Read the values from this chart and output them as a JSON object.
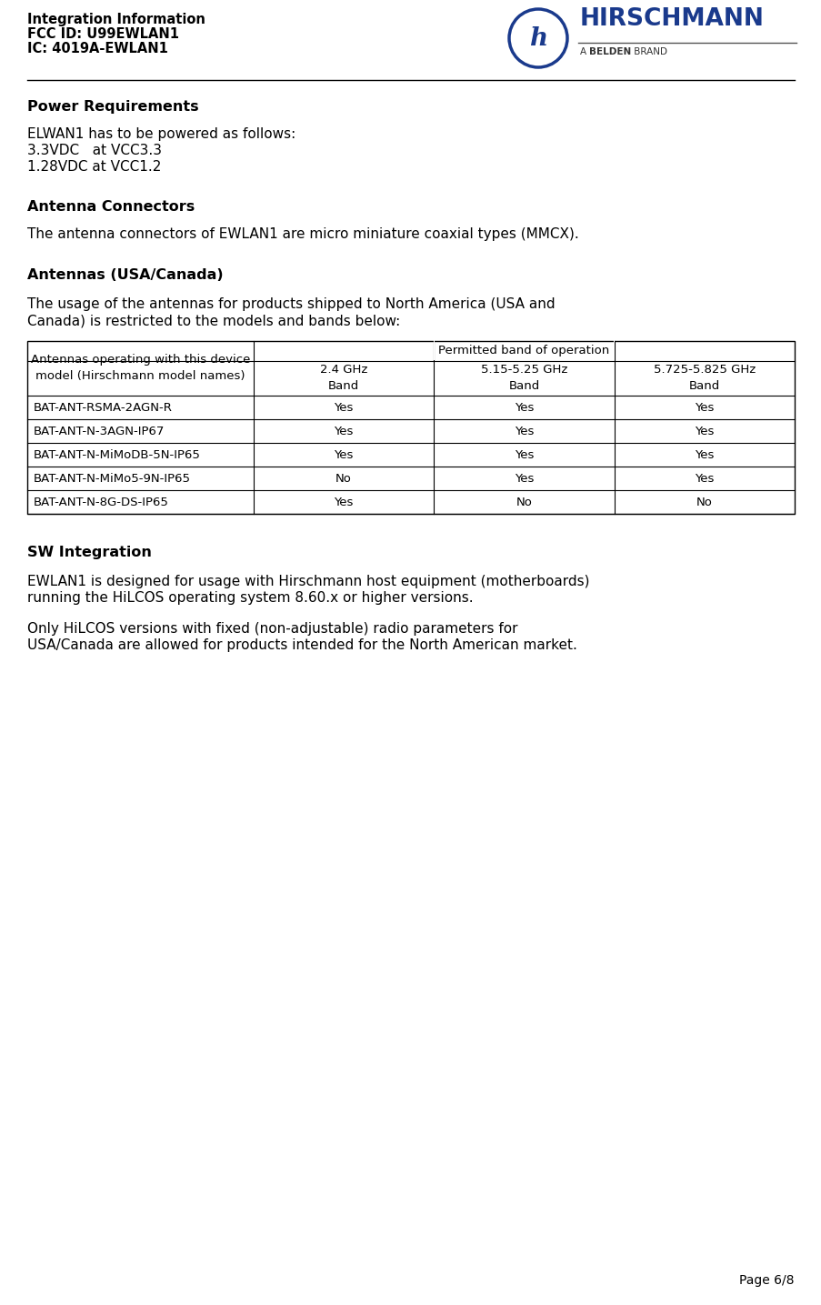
{
  "header_line1": "Integration Information",
  "header_line2": "FCC ID: U99EWLAN1",
  "header_line3": "IC: 4019A-EWLAN1",
  "page_label": "Page 6/8",
  "section1_title": "Power Requirements",
  "section1_body_line1": "ELWAN1 has to be powered as follows:",
  "section1_body_line2": "3.3VDC   at VCC3.3",
  "section1_body_line3": "1.28VDC at VCC1.2",
  "section2_title": "Antenna Connectors",
  "section2_body": "The antenna connectors of EWLAN1 are micro miniature coaxial types (MMCX).",
  "section3_title": "Antennas (USA/Canada)",
  "section3_body_line1": "The usage of the antennas for products shipped to North America (USA and",
  "section3_body_line2": "Canada) is restricted to the models and bands below:",
  "table_header_col0_line1": "Antennas operating with this device",
  "table_header_col0_line2": "model (Hirschmann model names)",
  "table_header_col1_line1": "2.4 GHz",
  "table_header_col1_line2": "Band",
  "table_header_col2_line1": "5.15-5.25 GHz",
  "table_header_col2_line2": "Band",
  "table_header_col3_line1": "5.725-5.825 GHz",
  "table_header_col3_line2": "Band",
  "table_header_merged": "Permitted band of operation",
  "table_rows": [
    [
      "BAT-ANT-RSMA-2AGN-R",
      "Yes",
      "Yes",
      "Yes"
    ],
    [
      "BAT-ANT-N-3AGN-IP67",
      "Yes",
      "Yes",
      "Yes"
    ],
    [
      "BAT-ANT-N-MiMoDB-5N-IP65",
      "Yes",
      "Yes",
      "Yes"
    ],
    [
      "BAT-ANT-N-MiMo5-9N-IP65",
      "No",
      "Yes",
      "Yes"
    ],
    [
      "BAT-ANT-N-8G-DS-IP65",
      "Yes",
      "No",
      "No"
    ]
  ],
  "section4_title": "SW Integration",
  "section4_body1_line1": "EWLAN1 is designed for usage with Hirschmann host equipment (motherboards)",
  "section4_body1_line2": "running the HiLCOS operating system 8.60.x or higher versions.",
  "section4_body2_line1": "Only HiLCOS versions with fixed (non-adjustable) radio parameters for",
  "section4_body2_line2": "USA/Canada are allowed for products intended for the North American market.",
  "bg_color": "#ffffff",
  "text_color": "#000000",
  "logo_circle_color": "#1a3a8c",
  "logo_text_color": "#1a3a8c"
}
